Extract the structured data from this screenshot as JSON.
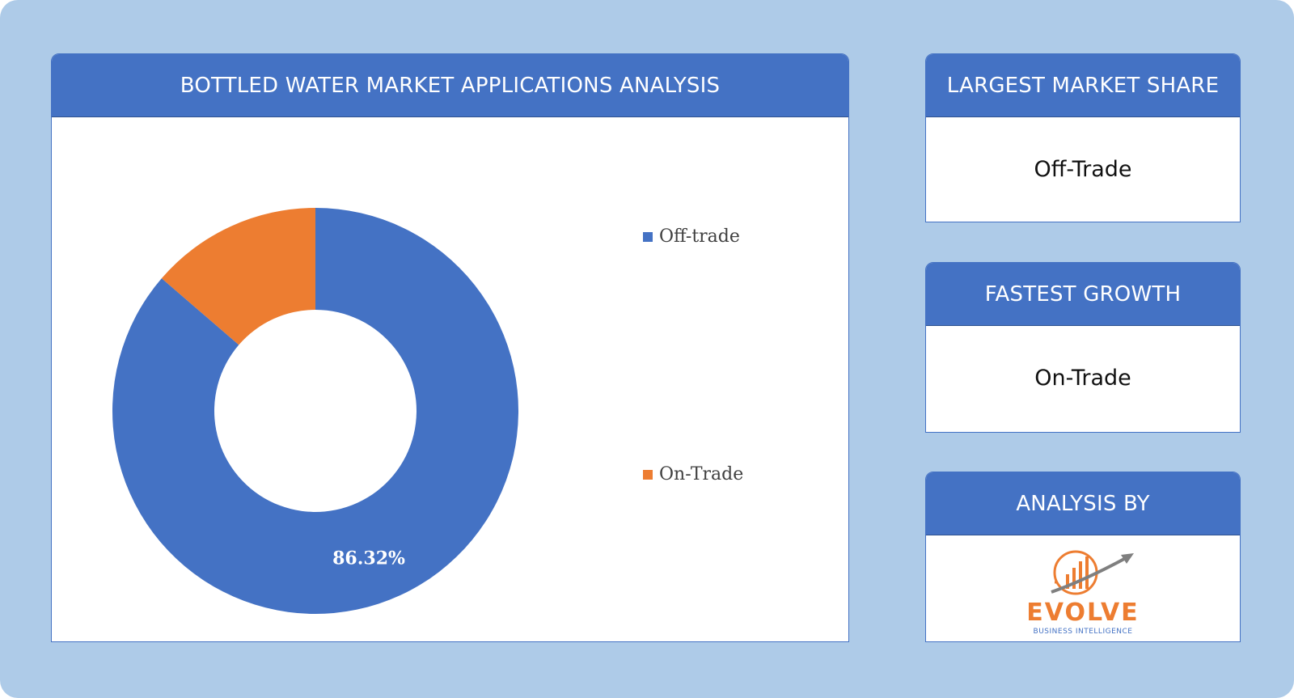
{
  "main": {
    "title": "BOTTLED WATER MARKET APPLICATIONS ANALYSIS"
  },
  "chart_data": {
    "type": "pie",
    "variant": "donut",
    "categories": [
      "Off-trade",
      "On-Trade"
    ],
    "values": [
      86.32,
      13.68
    ],
    "colors": [
      "#4472c4",
      "#ed7d31"
    ],
    "data_labels": [
      "86.32%",
      ""
    ],
    "legend": "right"
  },
  "legend": {
    "items": [
      {
        "label": "Off-trade",
        "color": "#4472c4"
      },
      {
        "label": "On-Trade",
        "color": "#ed7d31"
      }
    ]
  },
  "largest": {
    "title": "LARGEST MARKET SHARE",
    "value": "Off-Trade"
  },
  "fastest": {
    "title": "FASTEST GROWTH",
    "value": "On-Trade"
  },
  "analysis": {
    "title": "ANALYSIS BY",
    "logo_name": "EVOLVE",
    "logo_tagline": "BUSINESS INTELLIGENCE"
  },
  "colors": {
    "background": "#aecbe8",
    "header": "#4472c4",
    "accent_orange": "#ed7d31"
  }
}
